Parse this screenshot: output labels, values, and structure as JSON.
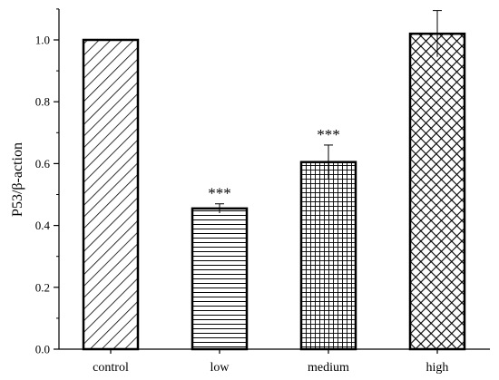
{
  "chart_data": {
    "type": "bar",
    "title": "",
    "xlabel": "",
    "ylabel": "P53/β-action",
    "ylim": [
      0,
      1.1
    ],
    "yticks": [
      0.0,
      0.2,
      0.4,
      0.6,
      0.8,
      1.0
    ],
    "ytick_labels": [
      "0.0",
      "0.2",
      "0.4",
      "0.6",
      "0.8",
      "1.0"
    ],
    "grid": false,
    "legend": "none",
    "categories": [
      "control",
      "low",
      "medium",
      "high"
    ],
    "values": [
      1.0,
      0.455,
      0.605,
      1.02
    ],
    "errors": [
      0.0,
      0.015,
      0.055,
      0.075
    ],
    "significance": [
      "",
      "***",
      "***",
      ""
    ],
    "patterns": [
      "diagonal",
      "horizontal",
      "grid",
      "crosshatch"
    ],
    "bar_fill": "#ffffff",
    "bar_stroke": "#000000"
  }
}
